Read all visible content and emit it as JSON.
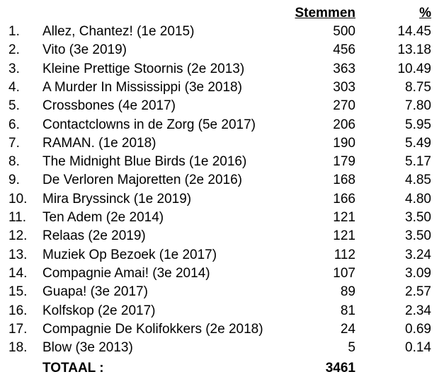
{
  "header": {
    "votes": "Stemmen",
    "percent": "%"
  },
  "rows": [
    {
      "rank": "1.",
      "name": "Allez, Chantez! (1e 2015)",
      "votes": "500",
      "percent": "14.45"
    },
    {
      "rank": "2.",
      "name": "Vito (3e 2019)",
      "votes": "456",
      "percent": "13.18"
    },
    {
      "rank": "3.",
      "name": "Kleine Prettige Stoornis (2e 2013)",
      "votes": "363",
      "percent": "10.49"
    },
    {
      "rank": "4.",
      "name": "A Murder In Mississippi (3e 2018)",
      "votes": "303",
      "percent": "8.75"
    },
    {
      "rank": "5.",
      "name": "Crossbones (4e 2017)",
      "votes": "270",
      "percent": "7.80"
    },
    {
      "rank": "6.",
      "name": "Contactclowns in de Zorg (5e 2017)",
      "votes": "206",
      "percent": "5.95"
    },
    {
      "rank": "7.",
      "name": "RAMAN. (1e 2018)",
      "votes": "190",
      "percent": "5.49"
    },
    {
      "rank": "8.",
      "name": "The Midnight Blue Birds (1e 2016)",
      "votes": "179",
      "percent": "5.17"
    },
    {
      "rank": "9.",
      "name": "De Verloren Majoretten (2e 2016)",
      "votes": "168",
      "percent": "4.85"
    },
    {
      "rank": "10.",
      "name": "Mira Bryssinck (1e 2019)",
      "votes": "166",
      "percent": "4.80"
    },
    {
      "rank": "11.",
      "name": "Ten Adem (2e 2014)",
      "votes": "121",
      "percent": "3.50"
    },
    {
      "rank": "12.",
      "name": "Relaas (2e 2019)",
      "votes": "121",
      "percent": "3.50"
    },
    {
      "rank": "13.",
      "name": "Muziek Op Bezoek (1e 2017)",
      "votes": "112",
      "percent": "3.24"
    },
    {
      "rank": "14.",
      "name": "Compagnie Amai! (3e 2014)",
      "votes": "107",
      "percent": "3.09"
    },
    {
      "rank": "15.",
      "name": "Guapa! (3e 2017)",
      "votes": "89",
      "percent": "2.57"
    },
    {
      "rank": "16.",
      "name": "Kolfskop (2e 2017)",
      "votes": "81",
      "percent": "2.34"
    },
    {
      "rank": "17.",
      "name": "Compagnie De Kolifokkers (2e 2018)",
      "votes": "24",
      "percent": "0.69"
    },
    {
      "rank": "18.",
      "name": "Blow (3e 2013)",
      "votes": "5",
      "percent": "0.14"
    }
  ],
  "total": {
    "label": "TOTAAL :",
    "votes": "3461"
  }
}
